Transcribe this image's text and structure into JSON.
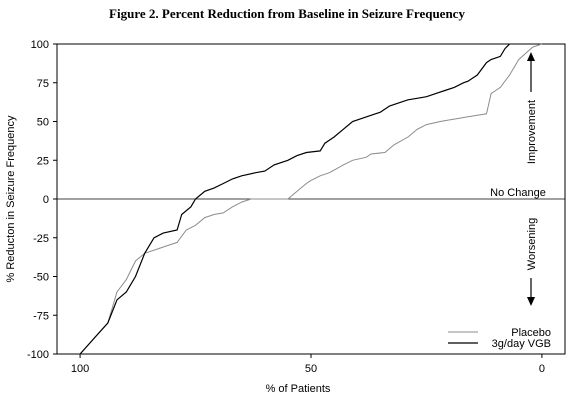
{
  "chart_data": {
    "type": "line",
    "title": "Figure 2. Percent Reduction from Baseline in Seizure Frequency",
    "xlabel": "% of Patients",
    "ylabel": "% Reducton in Seizure Frequency",
    "xlim": [
      105,
      -5
    ],
    "ylim": [
      -100,
      100
    ],
    "x_ticks": [
      "100",
      "50",
      "0"
    ],
    "y_ticks": [
      "100",
      "75",
      "50",
      "25",
      "0",
      "-25",
      "-50",
      "-75",
      "-100"
    ],
    "grid": false,
    "legend_position": "bottom-right",
    "annotations": {
      "improvement": "Improvement",
      "no_change": "No Change",
      "worsening": "Worsening"
    },
    "series": [
      {
        "name": "Placebo",
        "color": "#8c8c8c",
        "x": [
          100,
          97,
          94,
          92,
          90,
          88,
          86,
          83,
          81,
          79,
          77,
          75,
          73,
          71,
          69,
          67,
          65,
          63,
          62,
          60,
          58,
          55,
          53,
          51,
          50,
          48,
          46,
          43,
          41,
          38,
          37,
          34,
          32,
          29,
          27,
          25,
          22,
          20,
          18,
          16,
          14,
          12,
          11,
          10,
          9,
          7,
          5,
          2,
          0
        ],
        "y": [
          -100,
          -90,
          -80,
          -60,
          -52,
          -40,
          -35,
          -32,
          -30,
          -28,
          -20,
          -17,
          -12,
          -10,
          -9,
          -5,
          -2,
          0,
          0,
          0,
          0,
          0,
          5,
          10,
          12,
          15,
          17,
          22,
          25,
          27,
          29,
          30,
          35,
          40,
          45,
          48,
          50,
          51,
          52,
          53,
          54,
          55,
          68,
          70,
          72,
          80,
          90,
          98,
          100
        ]
      },
      {
        "name": "3g/day VGB",
        "color": "#000000",
        "x": [
          100,
          97,
          94,
          92,
          90,
          88,
          86,
          84,
          82,
          79,
          78,
          76,
          75,
          73,
          71,
          69,
          67,
          65,
          62,
          60,
          58,
          55,
          53,
          51,
          48,
          47,
          45,
          43,
          41,
          39,
          37,
          35,
          33,
          31,
          29,
          27,
          25,
          23,
          21,
          19,
          17,
          16,
          15,
          14,
          12,
          11,
          9,
          8,
          7
        ],
        "y": [
          -100,
          -90,
          -80,
          -65,
          -60,
          -50,
          -35,
          -25,
          -22,
          -20,
          -10,
          -5,
          0,
          5,
          7,
          10,
          13,
          15,
          17,
          18,
          22,
          25,
          28,
          30,
          31,
          36,
          40,
          45,
          50,
          52,
          54,
          56,
          60,
          62,
          64,
          65,
          66,
          68,
          70,
          72,
          75,
          76,
          78,
          80,
          88,
          90,
          92,
          97,
          100
        ]
      }
    ]
  }
}
